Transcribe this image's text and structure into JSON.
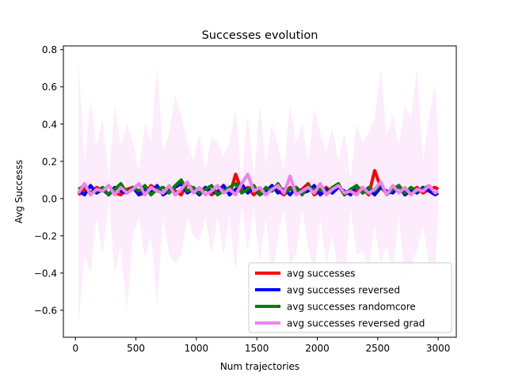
{
  "chart_data": {
    "type": "line",
    "title": "Successes evolution",
    "xlabel": "Num trajectories",
    "ylabel": "Avg Successs",
    "xlim": [
      -100,
      3150
    ],
    "ylim": [
      -0.745,
      0.82
    ],
    "xticks": [
      0,
      500,
      1000,
      1500,
      2000,
      2500,
      3000
    ],
    "yticks": [
      -0.6,
      -0.4,
      -0.2,
      0.0,
      0.2,
      0.4,
      0.6,
      0.8
    ],
    "xtick_labels": [
      "0",
      "500",
      "1000",
      "1500",
      "2000",
      "2500",
      "3000"
    ],
    "ytick_labels": [
      "−0.6",
      "−0.4",
      "−0.2",
      "0.0",
      "0.2",
      "0.4",
      "0.6",
      "0.8"
    ],
    "grid": false,
    "legend_position": "lower-right",
    "x": [
      25,
      75,
      125,
      175,
      225,
      275,
      325,
      375,
      425,
      475,
      525,
      575,
      625,
      675,
      725,
      775,
      825,
      875,
      925,
      975,
      1025,
      1075,
      1125,
      1175,
      1225,
      1275,
      1325,
      1375,
      1425,
      1475,
      1525,
      1575,
      1625,
      1675,
      1725,
      1775,
      1825,
      1875,
      1925,
      1975,
      2025,
      2075,
      2125,
      2175,
      2225,
      2275,
      2325,
      2375,
      2425,
      2475,
      2525,
      2575,
      2625,
      2675,
      2725,
      2775,
      2825,
      2875,
      2925,
      2975,
      3000
    ],
    "series": [
      {
        "name": "avg successes",
        "color": "#ff0000",
        "linewidth": 4,
        "values": [
          0.02,
          0.05,
          0.03,
          0.06,
          0.04,
          0.07,
          0.03,
          0.02,
          0.05,
          0.06,
          0.02,
          0.03,
          0.07,
          0.05,
          0.03,
          0.06,
          0.04,
          0.02,
          0.08,
          0.05,
          0.03,
          0.06,
          0.02,
          0.04,
          0.07,
          0.02,
          0.13,
          0.04,
          0.06,
          0.02,
          0.05,
          0.03,
          0.07,
          0.04,
          0.02,
          0.06,
          0.03,
          0.05,
          0.08,
          0.02,
          0.04,
          0.06,
          0.03,
          0.07,
          0.02,
          0.05,
          0.04,
          0.06,
          0.02,
          0.15,
          0.06,
          0.03,
          0.05,
          0.07,
          0.02,
          0.04,
          0.06,
          0.03,
          0.05,
          0.06,
          0.05
        ]
      },
      {
        "name": "avg successes reversed",
        "color": "#0000ff",
        "linewidth": 4,
        "values": [
          0.04,
          0.02,
          0.07,
          0.03,
          0.05,
          0.02,
          0.06,
          0.04,
          0.03,
          0.06,
          0.02,
          0.05,
          0.03,
          0.07,
          0.02,
          0.04,
          0.06,
          0.08,
          0.03,
          0.05,
          0.02,
          0.06,
          0.04,
          0.03,
          0.07,
          0.02,
          0.05,
          0.08,
          0.03,
          0.06,
          0.02,
          0.04,
          0.07,
          0.03,
          0.05,
          0.02,
          0.06,
          0.03,
          0.04,
          0.07,
          0.02,
          0.05,
          0.03,
          0.06,
          0.04,
          0.02,
          0.07,
          0.03,
          0.05,
          0.02,
          0.06,
          0.04,
          0.03,
          0.07,
          0.02,
          0.05,
          0.03,
          0.06,
          0.04,
          0.02,
          0.03
        ]
      },
      {
        "name": "avg successes randomcore",
        "color": "#008000",
        "linewidth": 4,
        "values": [
          0.05,
          0.07,
          0.03,
          0.04,
          0.06,
          0.02,
          0.05,
          0.08,
          0.03,
          0.06,
          0.04,
          0.07,
          0.02,
          0.05,
          0.06,
          0.03,
          0.07,
          0.1,
          0.04,
          0.06,
          0.03,
          0.05,
          0.07,
          0.02,
          0.04,
          0.06,
          0.08,
          0.03,
          0.05,
          0.07,
          0.02,
          0.06,
          0.04,
          0.08,
          0.03,
          0.05,
          0.06,
          0.02,
          0.07,
          0.04,
          0.05,
          0.03,
          0.06,
          0.08,
          0.02,
          0.05,
          0.07,
          0.03,
          0.06,
          0.04,
          0.08,
          0.02,
          0.05,
          0.07,
          0.03,
          0.06,
          0.04,
          0.05,
          0.07,
          0.03,
          0.04
        ]
      },
      {
        "name": "avg successes reversed grad",
        "color": "#ee82ee",
        "linewidth": 4,
        "values": [
          0.03,
          0.08,
          0.02,
          0.05,
          0.04,
          0.07,
          0.02,
          0.06,
          0.03,
          0.05,
          0.08,
          0.02,
          0.06,
          0.04,
          0.03,
          0.07,
          0.02,
          0.05,
          0.09,
          0.03,
          0.06,
          0.02,
          0.04,
          0.07,
          0.03,
          0.05,
          0.02,
          0.08,
          0.13,
          0.04,
          0.06,
          0.02,
          0.05,
          0.07,
          0.03,
          0.12,
          0.02,
          0.04,
          0.06,
          0.03,
          0.08,
          0.02,
          0.05,
          0.07,
          0.03,
          0.04,
          0.02,
          0.06,
          0.03,
          0.05,
          0.09,
          0.02,
          0.07,
          0.03,
          0.06,
          0.02,
          0.05,
          0.04,
          0.07,
          0.03,
          0.04
        ],
        "band_upper": [
          0.73,
          0.2,
          0.52,
          0.28,
          0.43,
          0.1,
          0.5,
          0.28,
          0.4,
          0.3,
          0.15,
          0.4,
          0.3,
          0.7,
          0.25,
          0.35,
          0.55,
          0.45,
          0.3,
          0.2,
          0.35,
          0.15,
          0.33,
          0.3,
          0.23,
          0.3,
          0.48,
          0.08,
          0.45,
          0.1,
          0.5,
          0.18,
          0.4,
          0.28,
          0.15,
          0.5,
          0.3,
          0.4,
          0.2,
          0.48,
          0.35,
          0.25,
          0.38,
          0.2,
          0.35,
          0.1,
          0.4,
          0.3,
          0.35,
          0.43,
          0.7,
          0.33,
          0.45,
          0.28,
          0.5,
          0.43,
          0.7,
          0.2,
          0.43,
          0.62,
          0.3
        ],
        "band_lower": [
          -0.68,
          -0.3,
          -0.4,
          -0.1,
          -0.3,
          0.0,
          -0.4,
          -0.25,
          -0.6,
          -0.2,
          -0.1,
          -0.32,
          -0.2,
          -0.57,
          -0.1,
          -0.3,
          -0.35,
          -0.3,
          -0.1,
          -0.2,
          -0.23,
          -0.1,
          -0.3,
          -0.1,
          -0.3,
          -0.1,
          -0.4,
          -0.03,
          -0.28,
          -0.05,
          -0.35,
          -0.1,
          -0.45,
          -0.2,
          -0.05,
          -0.35,
          -0.3,
          -0.05,
          -0.26,
          -0.4,
          -0.1,
          -0.35,
          -0.2,
          -0.4,
          -0.45,
          -0.05,
          -0.3,
          -0.28,
          -0.38,
          -0.15,
          -0.35,
          -0.25,
          -0.4,
          -0.1,
          -0.45,
          -0.36,
          -0.27,
          -0.15,
          -0.35,
          -0.36,
          -0.1
        ],
        "band_color": "#ee82ee"
      }
    ]
  }
}
